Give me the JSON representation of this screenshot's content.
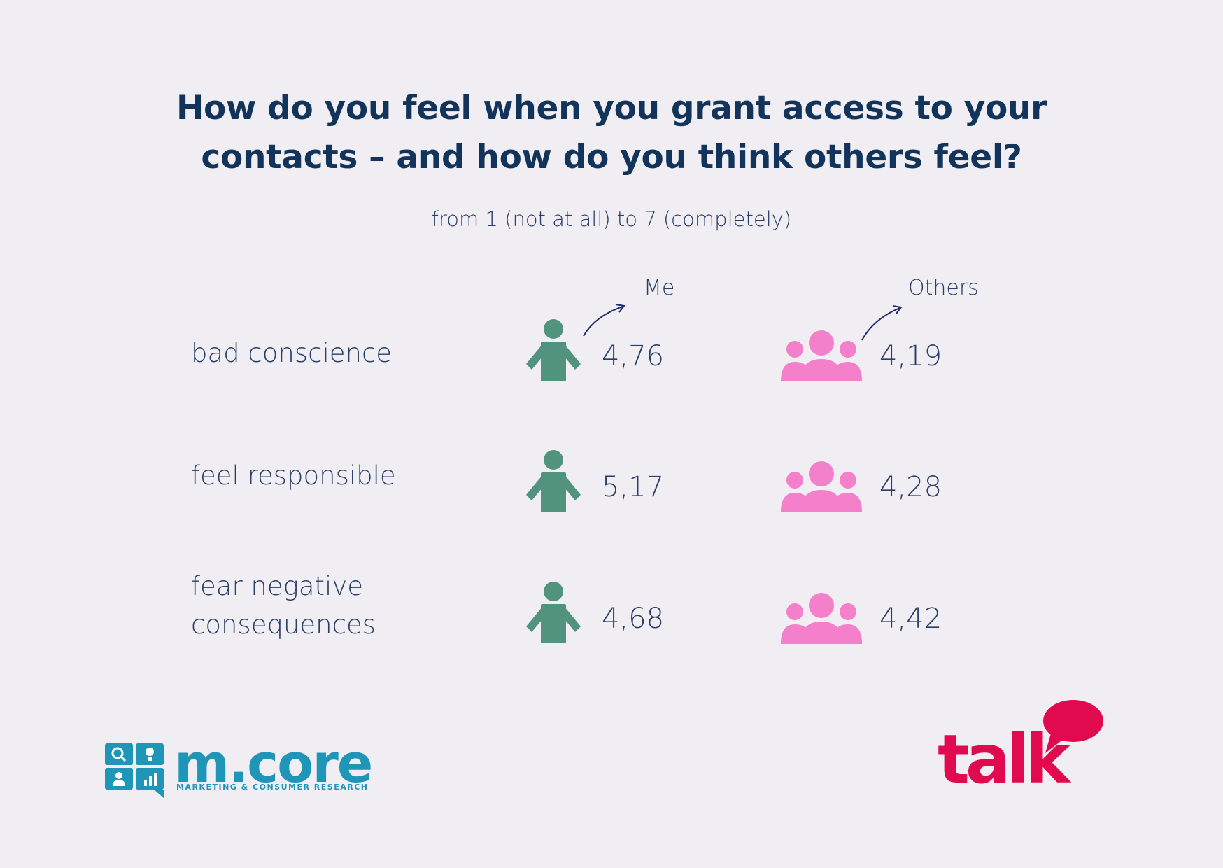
{
  "title": {
    "line1": "How do you feel when you grant access to your",
    "line2": "contacts – and how do you think others feel?"
  },
  "subtitle": "from 1 (not at all) to 7 (completely)",
  "columns": {
    "me": "Me",
    "others": "Others"
  },
  "rows": [
    {
      "label_line1": "bad conscience",
      "label_line2": "",
      "me": "4,76",
      "others": "4,19"
    },
    {
      "label_line1": "feel responsible",
      "label_line2": "",
      "me": "5,17",
      "others": "4,28"
    },
    {
      "label_line1": "fear negative",
      "label_line2": "consequences",
      "me": "4,68",
      "others": "4,42"
    }
  ],
  "icons": {
    "me": "single-person-icon",
    "others": "group-people-icon"
  },
  "colors": {
    "background": "#f0edf3",
    "title": "#12345a",
    "me_icon": "#52937d",
    "others_icon": "#f47fcb",
    "mcore_brand": "#1f96b8",
    "talk_brand": "#e20a4e"
  },
  "logos": {
    "mcore": {
      "name": "m.core",
      "tagline": "MARKETING & CONSUMER RESEARCH"
    },
    "talk": {
      "name": "talk"
    }
  }
}
